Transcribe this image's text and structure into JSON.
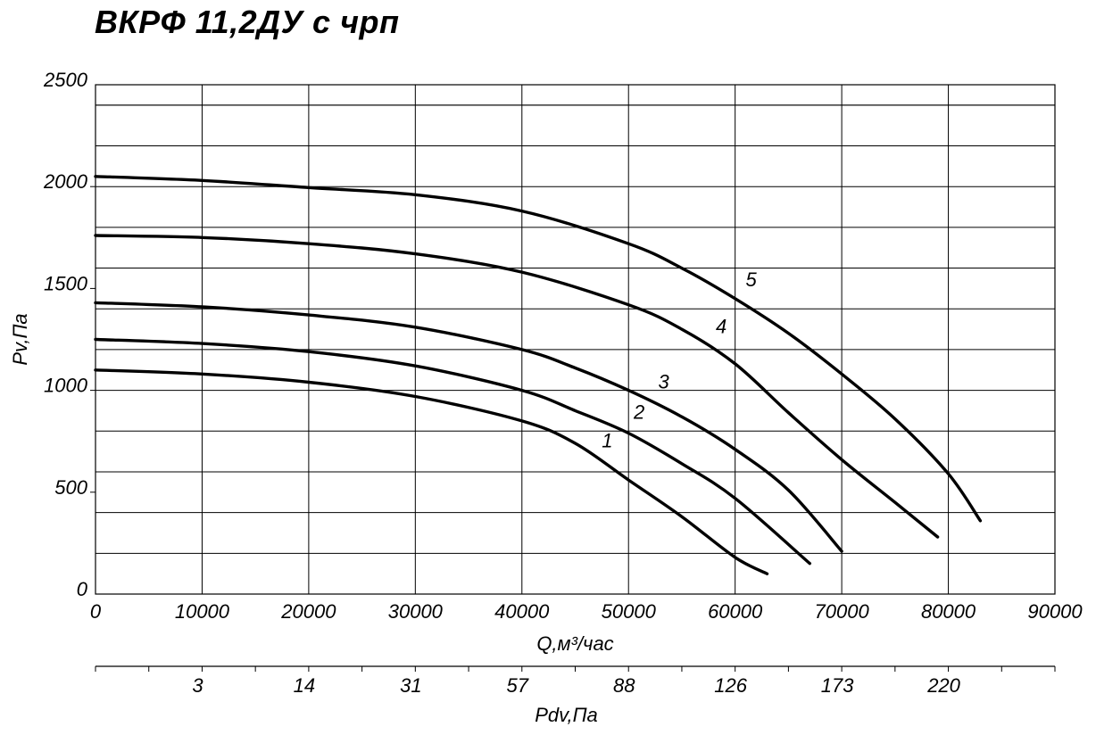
{
  "title": "ВКРФ 11,2ДУ с чрп",
  "chart_data": {
    "type": "line",
    "title": "ВКРФ 11,2ДУ с чрп",
    "xlabel": "Q,м³/час",
    "ylabel": "Pv,Па",
    "xlim": [
      0,
      90000
    ],
    "ylim": [
      0,
      2500
    ],
    "x_ticks": [
      "0",
      "10000",
      "20000",
      "30000",
      "40000",
      "50000",
      "60000",
      "70000",
      "80000",
      "90000"
    ],
    "y_ticks": [
      "0",
      "500",
      "1000",
      "1500",
      "2000",
      "2500"
    ],
    "grid": true,
    "secondary_axis": {
      "label": "Pdv,Па",
      "ticks": [
        {
          "label": "3",
          "q": 10000
        },
        {
          "label": "14",
          "q": 20000
        },
        {
          "label": "31",
          "q": 30000
        },
        {
          "label": "57",
          "q": 40000
        },
        {
          "label": "88",
          "q": 50000
        },
        {
          "label": "126",
          "q": 60000
        },
        {
          "label": "173",
          "q": 70000
        },
        {
          "label": "220",
          "q": 80000
        }
      ]
    },
    "series": [
      {
        "name": "1",
        "x": [
          0,
          10000,
          20000,
          30000,
          40000,
          45000,
          50000,
          55000,
          60000,
          63000
        ],
        "y": [
          1100,
          1080,
          1040,
          970,
          850,
          740,
          560,
          380,
          180,
          100
        ]
      },
      {
        "name": "2",
        "x": [
          0,
          10000,
          20000,
          30000,
          40000,
          45000,
          50000,
          55000,
          60000,
          67000
        ],
        "y": [
          1250,
          1230,
          1190,
          1120,
          1000,
          900,
          790,
          640,
          470,
          150
        ]
      },
      {
        "name": "3",
        "x": [
          0,
          10000,
          20000,
          30000,
          40000,
          45000,
          50000,
          55000,
          60000,
          65000,
          70000
        ],
        "y": [
          1430,
          1410,
          1370,
          1310,
          1200,
          1110,
          1000,
          870,
          710,
          510,
          210
        ]
      },
      {
        "name": "4",
        "x": [
          0,
          10000,
          20000,
          30000,
          40000,
          50000,
          55000,
          60000,
          65000,
          70000,
          75000,
          79000
        ],
        "y": [
          1760,
          1750,
          1720,
          1670,
          1580,
          1420,
          1300,
          1130,
          890,
          660,
          450,
          280
        ]
      },
      {
        "name": "5",
        "x": [
          0,
          10000,
          20000,
          30000,
          40000,
          50000,
          55000,
          60000,
          65000,
          70000,
          75000,
          80000,
          83000
        ],
        "y": [
          2050,
          2030,
          1995,
          1960,
          1880,
          1720,
          1600,
          1450,
          1280,
          1080,
          860,
          590,
          360
        ]
      }
    ],
    "curve_labels": [
      {
        "text": "1",
        "x": 48000,
        "y": 720
      },
      {
        "text": "2",
        "x": 51000,
        "y": 860
      },
      {
        "text": "3",
        "x": 53300,
        "y": 1010
      },
      {
        "text": "4",
        "x": 58700,
        "y": 1280
      },
      {
        "text": "5",
        "x": 61500,
        "y": 1510
      }
    ]
  }
}
